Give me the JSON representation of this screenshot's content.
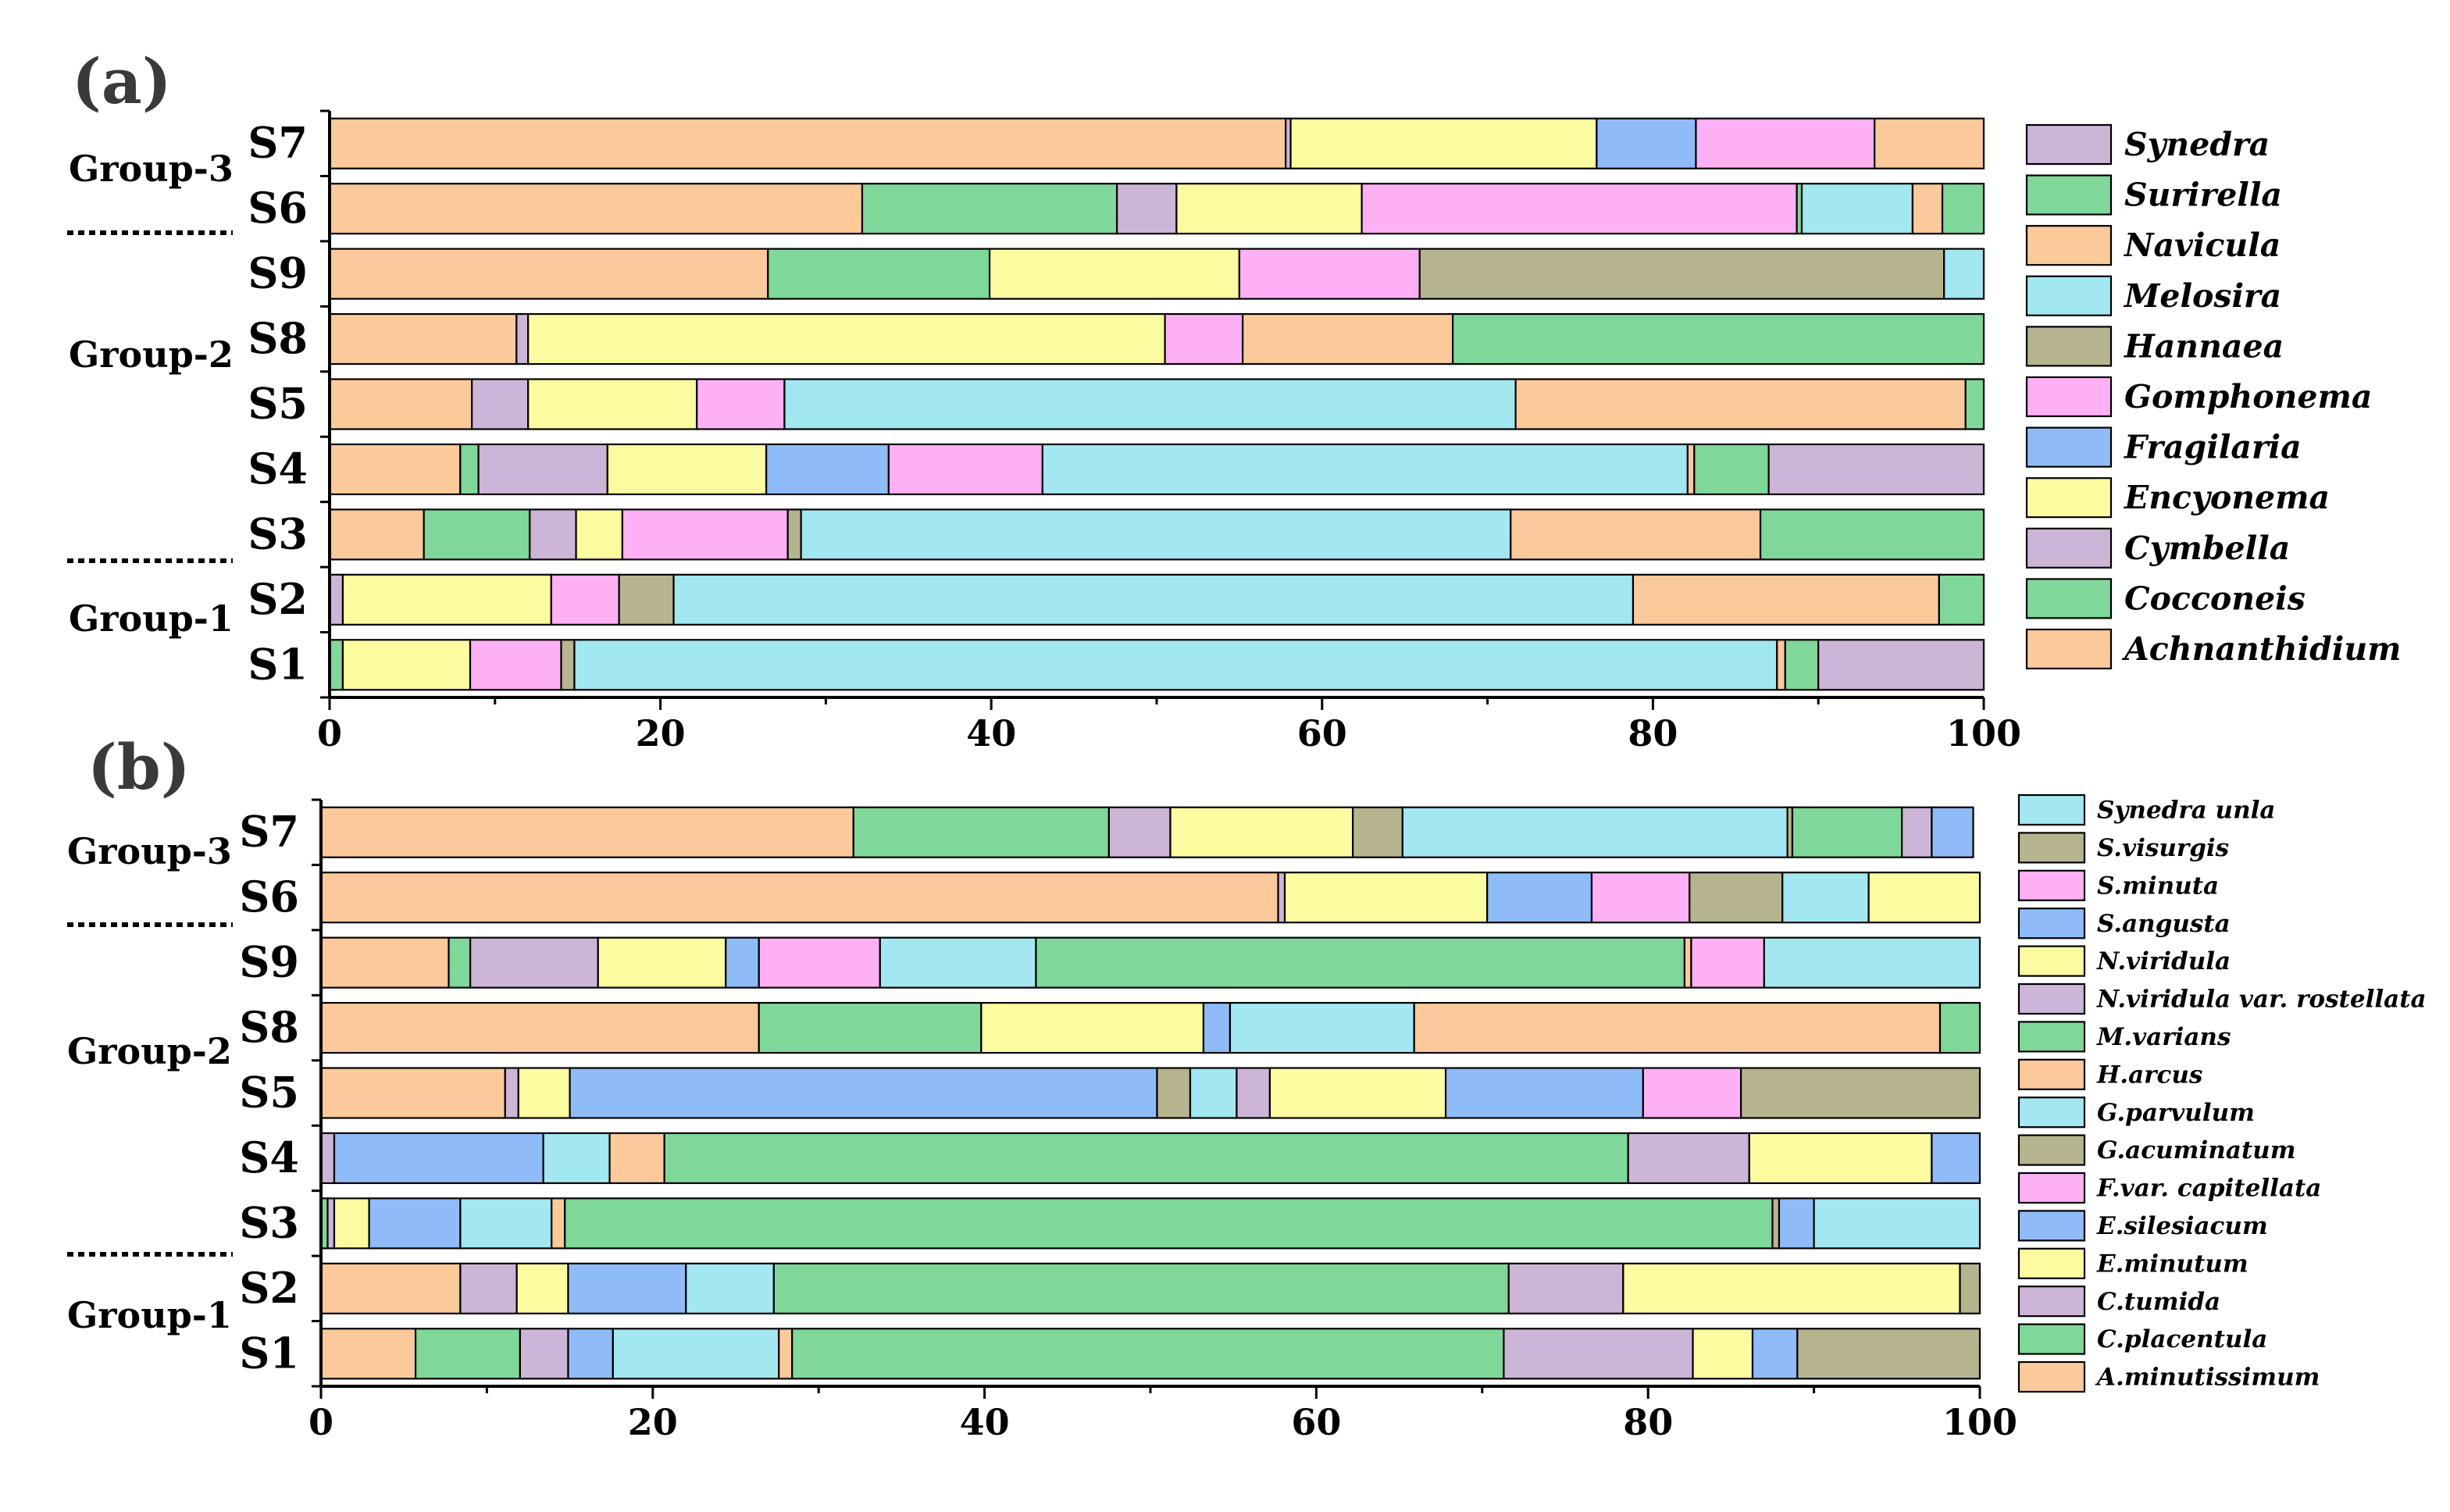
{
  "chart_data": [
    {
      "type": "bar",
      "orientation": "horizontal",
      "stacked": true,
      "title": "(a)",
      "xlabel": "",
      "ylabel": "",
      "xlim": [
        0,
        100
      ],
      "xticks": [
        0,
        20,
        40,
        60,
        80,
        100
      ],
      "categories": [
        "S7",
        "S6",
        "S9",
        "S8",
        "S5",
        "S4",
        "S3",
        "S2",
        "S1"
      ],
      "groups": [
        {
          "label": "Group-3",
          "members": [
            "S7",
            "S6"
          ]
        },
        {
          "label": "Group-2",
          "members": [
            "S9",
            "S8",
            "S5",
            "S4",
            "S3"
          ]
        },
        {
          "label": "Group-1",
          "members": [
            "S2",
            "S1"
          ]
        }
      ],
      "legend": [
        {
          "name": "Synedra",
          "color": "#cdb5d8"
        },
        {
          "name": "Surirella",
          "color": "#7fd89a"
        },
        {
          "name": "Navicula",
          "color": "#fcc99a"
        },
        {
          "name": "Melosira",
          "color": "#a3e7f0"
        },
        {
          "name": "Hannaea",
          "color": "#b6b48e"
        },
        {
          "name": "Gomphonema",
          "color": "#fdb0f4"
        },
        {
          "name": "Fragilaria",
          "color": "#8fbcf8"
        },
        {
          "name": "Encyonema",
          "color": "#fcfba0"
        },
        {
          "name": "Cymbella",
          "color": "#cdb5d8"
        },
        {
          "name": "Cocconeis",
          "color": "#7fd89a"
        },
        {
          "name": "Achnanthidium",
          "color": "#fcc99a"
        }
      ],
      "bars": {
        "S7": [
          [
            57.8,
            "#fcc99a"
          ],
          [
            0.3,
            "#cdb5d8"
          ],
          [
            18.5,
            "#fcfba0"
          ],
          [
            6.0,
            "#8fbcf8"
          ],
          [
            10.8,
            "#fdb0f4"
          ],
          [
            6.6,
            "#fcc99a"
          ]
        ],
        "S6": [
          [
            32.2,
            "#fcc99a"
          ],
          [
            15.4,
            "#7fd89a"
          ],
          [
            3.6,
            "#cdb5d8"
          ],
          [
            11.2,
            "#fcfba0"
          ],
          [
            26.3,
            "#fdb0f4"
          ],
          [
            0.3,
            "#7fd89a"
          ],
          [
            6.7,
            "#a3e7f0"
          ],
          [
            1.8,
            "#fcc99a"
          ],
          [
            2.5,
            "#7fd89a"
          ]
        ],
        "S9": [
          [
            26.5,
            "#fcc99a"
          ],
          [
            13.4,
            "#7fd89a"
          ],
          [
            15.1,
            "#fcfba0"
          ],
          [
            10.9,
            "#fdb0f4"
          ],
          [
            31.7,
            "#b6b48e"
          ],
          [
            2.4,
            "#a3e7f0"
          ]
        ],
        "S8": [
          [
            11.3,
            "#fcc99a"
          ],
          [
            0.7,
            "#cdb5d8"
          ],
          [
            38.5,
            "#fcfba0"
          ],
          [
            4.7,
            "#fdb0f4"
          ],
          [
            12.7,
            "#fcc99a"
          ],
          [
            32.1,
            "#7fd89a"
          ]
        ],
        "S5": [
          [
            8.6,
            "#fcc99a"
          ],
          [
            3.4,
            "#cdb5d8"
          ],
          [
            10.2,
            "#fcfba0"
          ],
          [
            5.3,
            "#fdb0f4"
          ],
          [
            44.2,
            "#a3e7f0"
          ],
          [
            27.2,
            "#fcc99a"
          ],
          [
            1.1,
            "#7fd89a"
          ]
        ],
        "S4": [
          [
            7.9,
            "#fcc99a"
          ],
          [
            1.1,
            "#7fd89a"
          ],
          [
            7.8,
            "#cdb5d8"
          ],
          [
            9.6,
            "#fcfba0"
          ],
          [
            7.4,
            "#8fbcf8"
          ],
          [
            9.3,
            "#fdb0f4"
          ],
          [
            39.0,
            "#a3e7f0"
          ],
          [
            0.4,
            "#fcc99a"
          ],
          [
            4.5,
            "#7fd89a"
          ],
          [
            13.0,
            "#cdb5d8"
          ]
        ],
        "S3": [
          [
            5.7,
            "#fcc99a"
          ],
          [
            6.4,
            "#7fd89a"
          ],
          [
            2.8,
            "#cdb5d8"
          ],
          [
            2.8,
            "#fcfba0"
          ],
          [
            10.0,
            "#fdb0f4"
          ],
          [
            0.8,
            "#b6b48e"
          ],
          [
            42.9,
            "#a3e7f0"
          ],
          [
            15.1,
            "#fcc99a"
          ],
          [
            13.5,
            "#7fd89a"
          ]
        ],
        "S2": [
          [
            0.8,
            "#cdb5d8"
          ],
          [
            12.6,
            "#fcfba0"
          ],
          [
            4.1,
            "#fdb0f4"
          ],
          [
            3.3,
            "#b6b48e"
          ],
          [
            58.0,
            "#a3e7f0"
          ],
          [
            18.5,
            "#fcc99a"
          ],
          [
            2.7,
            "#7fd89a"
          ]
        ],
        "S1": [
          [
            0.8,
            "#7fd89a"
          ],
          [
            7.7,
            "#fcfba0"
          ],
          [
            5.5,
            "#fdb0f4"
          ],
          [
            0.8,
            "#b6b48e"
          ],
          [
            72.7,
            "#a3e7f0"
          ],
          [
            0.5,
            "#fcc99a"
          ],
          [
            2.0,
            "#7fd89a"
          ],
          [
            10.0,
            "#cdb5d8"
          ]
        ]
      }
    },
    {
      "type": "bar",
      "orientation": "horizontal",
      "stacked": true,
      "title": "(b)",
      "xlabel": "",
      "ylabel": "",
      "xlim": [
        0,
        100
      ],
      "xticks": [
        0,
        20,
        40,
        60,
        80,
        100
      ],
      "categories": [
        "S7",
        "S6",
        "S9",
        "S8",
        "S5",
        "S4",
        "S3",
        "S2",
        "S1"
      ],
      "groups": [
        {
          "label": "Group-3",
          "members": [
            "S7",
            "S6"
          ]
        },
        {
          "label": "Group-2",
          "members": [
            "S9",
            "S8",
            "S5",
            "S4",
            "S3"
          ]
        },
        {
          "label": "Group-1",
          "members": [
            "S2",
            "S1"
          ]
        }
      ],
      "legend": [
        {
          "name": "Synedra unla",
          "color": "#a3e7f0"
        },
        {
          "name": "S.visurgis",
          "color": "#b6b48e"
        },
        {
          "name": "S.minuta",
          "color": "#fdb0f4"
        },
        {
          "name": "S.angusta",
          "color": "#8fbcf8"
        },
        {
          "name": "N.viridula",
          "color": "#fcfba0"
        },
        {
          "name": "N.viridula var. rostellata",
          "color": "#cdb5d8"
        },
        {
          "name": "M.varians",
          "color": "#7fd89a"
        },
        {
          "name": "H.arcus",
          "color": "#fcc99a"
        },
        {
          "name": "G.parvulum",
          "color": "#a3e7f0"
        },
        {
          "name": "G.acuminatum",
          "color": "#b6b48e"
        },
        {
          "name": "F.var. capitellata",
          "color": "#fdb0f4"
        },
        {
          "name": "E.silesiacum",
          "color": "#8fbcf8"
        },
        {
          "name": "E.minutum",
          "color": "#fcfba0"
        },
        {
          "name": "C.tumida",
          "color": "#cdb5d8"
        },
        {
          "name": "C.placentula",
          "color": "#7fd89a"
        },
        {
          "name": "A.minutissimum",
          "color": "#fcc99a"
        }
      ],
      "bars": {
        "S7": [
          [
            32.1,
            "#fcc99a"
          ],
          [
            15.4,
            "#7fd89a"
          ],
          [
            3.7,
            "#cdb5d8"
          ],
          [
            11.0,
            "#fcfba0"
          ],
          [
            3.0,
            "#b6b48e"
          ],
          [
            23.2,
            "#a3e7f0"
          ],
          [
            0.3,
            "#b6b48e"
          ],
          [
            6.6,
            "#7fd89a"
          ],
          [
            1.8,
            "#cdb5d8"
          ],
          [
            2.5,
            "#8fbcf8"
          ]
        ],
        "S6": [
          [
            57.7,
            "#fcc99a"
          ],
          [
            0.4,
            "#cdb5d8"
          ],
          [
            12.2,
            "#fcfba0"
          ],
          [
            6.3,
            "#8fbcf8"
          ],
          [
            5.9,
            "#fdb0f4"
          ],
          [
            5.6,
            "#b6b48e"
          ],
          [
            5.2,
            "#a3e7f0"
          ],
          [
            6.7,
            "#fcfba0"
          ]
        ],
        "S9": [
          [
            7.7,
            "#fcc99a"
          ],
          [
            1.3,
            "#7fd89a"
          ],
          [
            7.7,
            "#cdb5d8"
          ],
          [
            7.7,
            "#fcfba0"
          ],
          [
            2.0,
            "#8fbcf8"
          ],
          [
            7.3,
            "#fdb0f4"
          ],
          [
            9.4,
            "#a3e7f0"
          ],
          [
            39.1,
            "#7fd89a"
          ],
          [
            0.4,
            "#fcc99a"
          ],
          [
            4.4,
            "#fdb0f4"
          ],
          [
            13.0,
            "#a3e7f0"
          ]
        ],
        "S8": [
          [
            26.4,
            "#fcc99a"
          ],
          [
            13.4,
            "#7fd89a"
          ],
          [
            13.4,
            "#fcfba0"
          ],
          [
            1.6,
            "#8fbcf8"
          ],
          [
            11.1,
            "#a3e7f0"
          ],
          [
            31.7,
            "#fcc99a"
          ],
          [
            2.4,
            "#7fd89a"
          ]
        ],
        "S5": [
          [
            11.1,
            "#fcc99a"
          ],
          [
            0.8,
            "#cdb5d8"
          ],
          [
            3.1,
            "#fcfba0"
          ],
          [
            35.4,
            "#8fbcf8"
          ],
          [
            2.0,
            "#b6b48e"
          ],
          [
            2.8,
            "#a3e7f0"
          ],
          [
            2.0,
            "#cdb5d8"
          ],
          [
            10.6,
            "#fcfba0"
          ],
          [
            11.9,
            "#8fbcf8"
          ],
          [
            5.9,
            "#fdb0f4"
          ],
          [
            14.4,
            "#b6b48e"
          ]
        ],
        "S4": [
          [
            0.8,
            "#cdb5d8"
          ],
          [
            12.6,
            "#8fbcf8"
          ],
          [
            4.0,
            "#a3e7f0"
          ],
          [
            3.3,
            "#fcc99a"
          ],
          [
            58.1,
            "#7fd89a"
          ],
          [
            7.3,
            "#cdb5d8"
          ],
          [
            11.0,
            "#fcfba0"
          ],
          [
            2.9,
            "#8fbcf8"
          ]
        ],
        "S3": [
          [
            0.4,
            "#7fd89a"
          ],
          [
            0.4,
            "#cdb5d8"
          ],
          [
            2.1,
            "#fcfba0"
          ],
          [
            5.5,
            "#8fbcf8"
          ],
          [
            5.5,
            "#a3e7f0"
          ],
          [
            0.8,
            "#fcc99a"
          ],
          [
            72.8,
            "#7fd89a"
          ],
          [
            0.4,
            "#b6b48e"
          ],
          [
            2.1,
            "#8fbcf8"
          ],
          [
            10.0,
            "#a3e7f0"
          ]
        ],
        "S2": [
          [
            8.4,
            "#fcc99a"
          ],
          [
            3.4,
            "#cdb5d8"
          ],
          [
            3.1,
            "#fcfba0"
          ],
          [
            7.1,
            "#8fbcf8"
          ],
          [
            5.3,
            "#a3e7f0"
          ],
          [
            44.3,
            "#7fd89a"
          ],
          [
            6.9,
            "#cdb5d8"
          ],
          [
            20.3,
            "#fcfba0"
          ],
          [
            1.2,
            "#b6b48e"
          ]
        ],
        "S1": [
          [
            5.7,
            "#fcc99a"
          ],
          [
            6.3,
            "#7fd89a"
          ],
          [
            2.9,
            "#cdb5d8"
          ],
          [
            2.7,
            "#8fbcf8"
          ],
          [
            10.0,
            "#a3e7f0"
          ],
          [
            0.8,
            "#fcc99a"
          ],
          [
            42.9,
            "#7fd89a"
          ],
          [
            11.4,
            "#cdb5d8"
          ],
          [
            3.6,
            "#fcfba0"
          ],
          [
            2.7,
            "#8fbcf8"
          ],
          [
            11.0,
            "#b6b48e"
          ]
        ]
      }
    }
  ]
}
